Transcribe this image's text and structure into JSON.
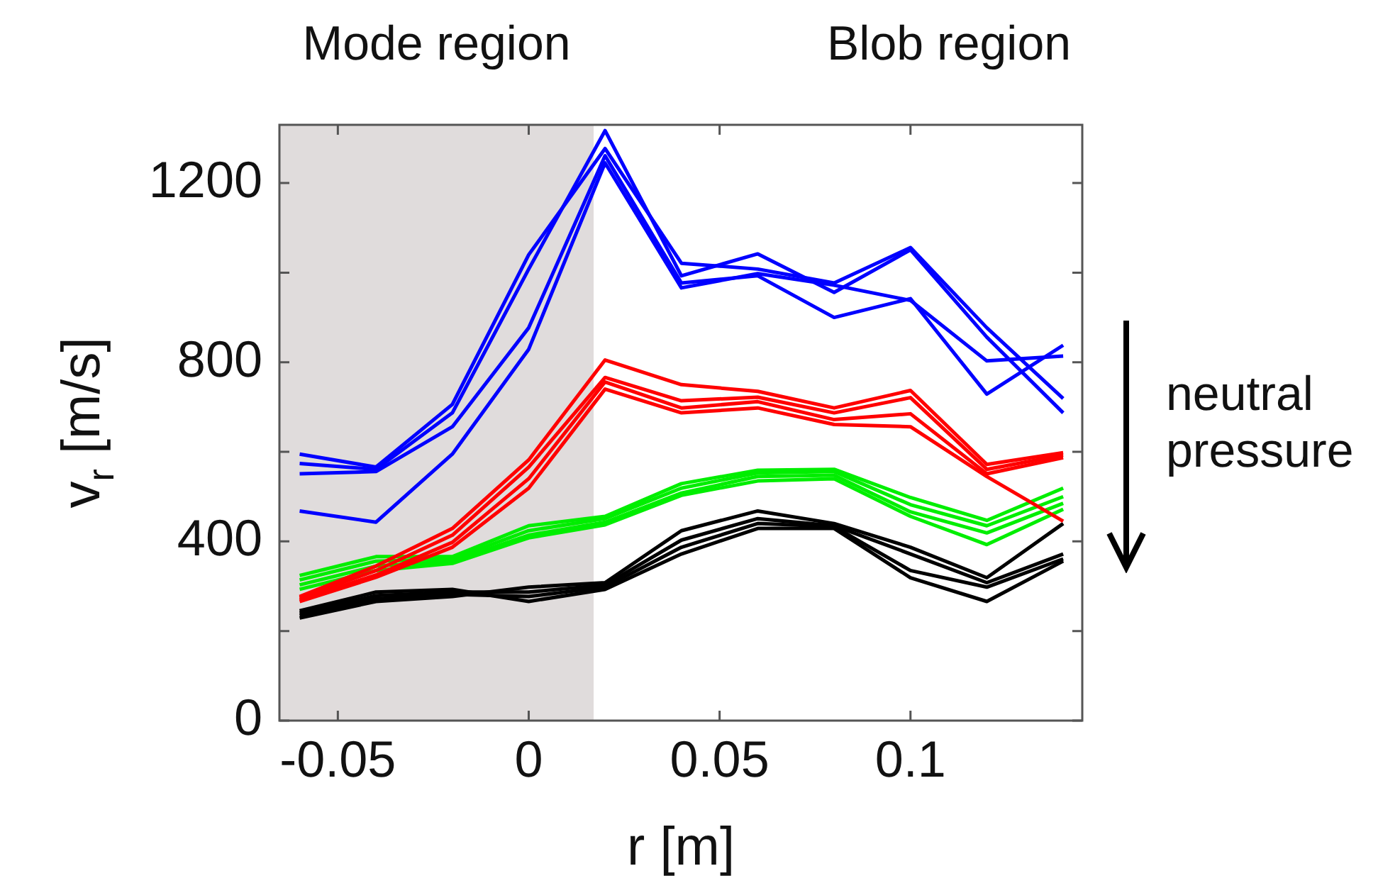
{
  "chart_data": {
    "type": "line",
    "xlabel": "r [m]",
    "ylabel": "v$_{r}$ [m/s]",
    "x": [
      -0.06,
      -0.04,
      -0.02,
      0,
      0.02,
      0.04,
      0.06,
      0.08,
      0.1,
      0.12,
      0.14
    ],
    "xlim": [
      -0.0653,
      0.145
    ],
    "xticks": [
      -0.05,
      0,
      0.05,
      0.1
    ],
    "ylim": [
      0,
      1330
    ],
    "yticks": [
      0,
      {
        "value": 200,
        "label": null
      },
      400,
      {
        "value": 600,
        "label": null
      },
      800,
      {
        "value": 1000,
        "label": null
      },
      1200
    ],
    "grid": false,
    "legend": false,
    "marker": "none",
    "line_style": "solid",
    "bands": [
      {
        "axis": "x",
        "from": -0.0653,
        "to": 0.017,
        "label": "Mode region",
        "color": "#e0dcdc"
      }
    ],
    "annotations": [
      "Blob region",
      "neutral pressure"
    ],
    "series": [
      {
        "color": "#0000ff",
        "values": [
          595,
          566,
          706,
          1040,
          1277,
          1021,
          1008,
          977,
          1056,
          877,
          719
        ]
      },
      {
        "color": "#0000ff",
        "values": [
          574,
          561,
          687,
          1008,
          1317,
          993,
          1042,
          956,
          1051,
          856,
          687
        ]
      },
      {
        "color": "#0000ff",
        "values": [
          551,
          556,
          656,
          877,
          1261,
          977,
          993,
          900,
          942,
          729,
          838
        ]
      },
      {
        "color": "#0000ff",
        "values": [
          468,
          443,
          595,
          829,
          1245,
          966,
          998,
          972,
          938,
          803,
          814
        ]
      },
      {
        "color": "#ff0000",
        "values": [
          277,
          345,
          429,
          582,
          805,
          750,
          735,
          698,
          737,
          572,
          598
        ]
      },
      {
        "color": "#ff0000",
        "values": [
          274,
          335,
          414,
          566,
          766,
          714,
          722,
          687,
          721,
          561,
          593
        ]
      },
      {
        "color": "#ff0000",
        "values": [
          270,
          325,
          398,
          540,
          756,
          698,
          712,
          672,
          685,
          551,
          587
        ]
      },
      {
        "color": "#ff0000",
        "values": [
          266,
          320,
          387,
          519,
          740,
          687,
          698,
          661,
          656,
          545,
          445
        ]
      },
      {
        "color": "#00ee00",
        "values": [
          324,
          366,
          366,
          435,
          456,
          529,
          559,
          561,
          498,
          447,
          519
        ]
      },
      {
        "color": "#00ee00",
        "values": [
          314,
          356,
          361,
          424,
          451,
          519,
          553,
          556,
          482,
          435,
          500
        ]
      },
      {
        "color": "#00ee00",
        "values": [
          303,
          345,
          356,
          414,
          443,
          508,
          545,
          548,
          466,
          419,
          485
        ]
      },
      {
        "color": "#00ee00",
        "values": [
          293,
          335,
          351,
          408,
          437,
          503,
          535,
          540,
          456,
          393,
          472
        ]
      },
      {
        "color": "#000000",
        "values": [
          229,
          266,
          277,
          298,
          308,
          424,
          468,
          440,
          387,
          319,
          440
        ]
      },
      {
        "color": "#000000",
        "values": [
          240,
          279,
          287,
          287,
          303,
          403,
          451,
          435,
          372,
          308,
          372
        ]
      },
      {
        "color": "#000000",
        "values": [
          235,
          272,
          282,
          277,
          298,
          387,
          440,
          433,
          335,
          298,
          361
        ]
      },
      {
        "color": "#000000",
        "values": [
          245,
          287,
          293,
          266,
          293,
          372,
          429,
          429,
          319,
          266,
          356
        ]
      }
    ]
  }
}
